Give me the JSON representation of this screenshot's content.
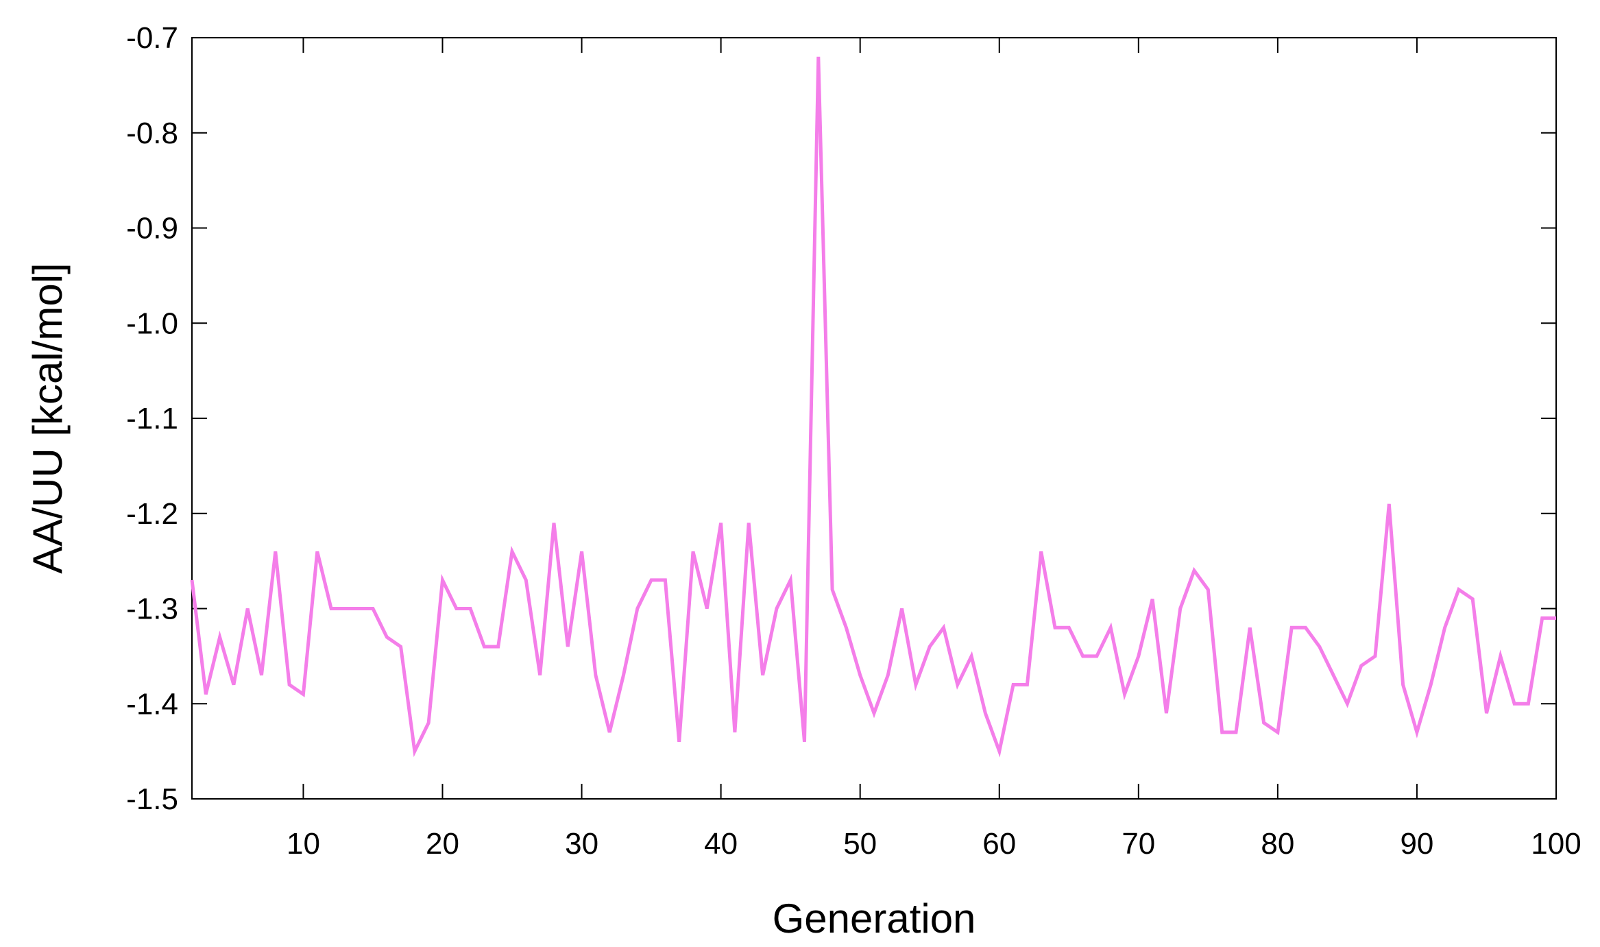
{
  "chart_data": {
    "type": "line",
    "xlabel": "Generation",
    "ylabel": "AA/UU [kcal/mol]",
    "xlim": [
      2,
      100
    ],
    "ylim": [
      -1.5,
      -0.7
    ],
    "grid": false,
    "x_ticks": [
      10,
      20,
      30,
      40,
      50,
      60,
      70,
      80,
      90,
      100
    ],
    "y_ticks": [
      -1.5,
      -1.4,
      -1.3,
      -1.2,
      -1.1,
      -1.0,
      -0.9,
      -0.8,
      -0.7
    ],
    "y_tick_labels": [
      "-1.5",
      "-1.4",
      "-1.3",
      "-1.2",
      "-1.1",
      "-1.0",
      "-0.9",
      "-0.8",
      "-0.7"
    ],
    "series": [
      {
        "color": "#f47ee9",
        "x": [
          2,
          3,
          4,
          5,
          6,
          7,
          8,
          9,
          10,
          11,
          12,
          13,
          14,
          15,
          16,
          17,
          18,
          19,
          20,
          21,
          22,
          23,
          24,
          25,
          26,
          27,
          28,
          29,
          30,
          31,
          32,
          33,
          34,
          35,
          36,
          37,
          38,
          39,
          40,
          41,
          42,
          43,
          44,
          45,
          46,
          47,
          48,
          49,
          50,
          51,
          52,
          53,
          54,
          55,
          56,
          57,
          58,
          59,
          60,
          61,
          62,
          63,
          64,
          65,
          66,
          67,
          68,
          69,
          70,
          71,
          72,
          73,
          74,
          75,
          76,
          77,
          78,
          79,
          80,
          81,
          82,
          83,
          84,
          85,
          86,
          87,
          88,
          89,
          90,
          91,
          92,
          93,
          94,
          95,
          96,
          97,
          98,
          99,
          100
        ],
        "values": [
          -1.27,
          -1.39,
          -1.33,
          -1.38,
          -1.3,
          -1.37,
          -1.24,
          -1.38,
          -1.39,
          -1.24,
          -1.3,
          -1.3,
          -1.3,
          -1.3,
          -1.33,
          -1.34,
          -1.45,
          -1.42,
          -1.27,
          -1.3,
          -1.3,
          -1.34,
          -1.34,
          -1.24,
          -1.27,
          -1.37,
          -1.21,
          -1.34,
          -1.24,
          -1.37,
          -1.43,
          -1.37,
          -1.3,
          -1.27,
          -1.27,
          -1.44,
          -1.24,
          -1.3,
          -1.21,
          -1.43,
          -1.21,
          -1.37,
          -1.3,
          -1.27,
          -1.44,
          -0.72,
          -1.28,
          -1.32,
          -1.37,
          -1.41,
          -1.37,
          -1.3,
          -1.38,
          -1.34,
          -1.32,
          -1.38,
          -1.35,
          -1.41,
          -1.45,
          -1.38,
          -1.38,
          -1.24,
          -1.32,
          -1.32,
          -1.35,
          -1.35,
          -1.32,
          -1.39,
          -1.35,
          -1.29,
          -1.41,
          -1.3,
          -1.26,
          -1.28,
          -1.43,
          -1.43,
          -1.32,
          -1.42,
          -1.43,
          -1.32,
          -1.32,
          -1.34,
          -1.37,
          -1.4,
          -1.36,
          -1.35,
          -1.19,
          -1.38,
          -1.43,
          -1.38,
          -1.32,
          -1.28,
          -1.29,
          -1.41,
          -1.35,
          -1.4,
          -1.4,
          -1.31,
          -1.31
        ]
      }
    ]
  }
}
